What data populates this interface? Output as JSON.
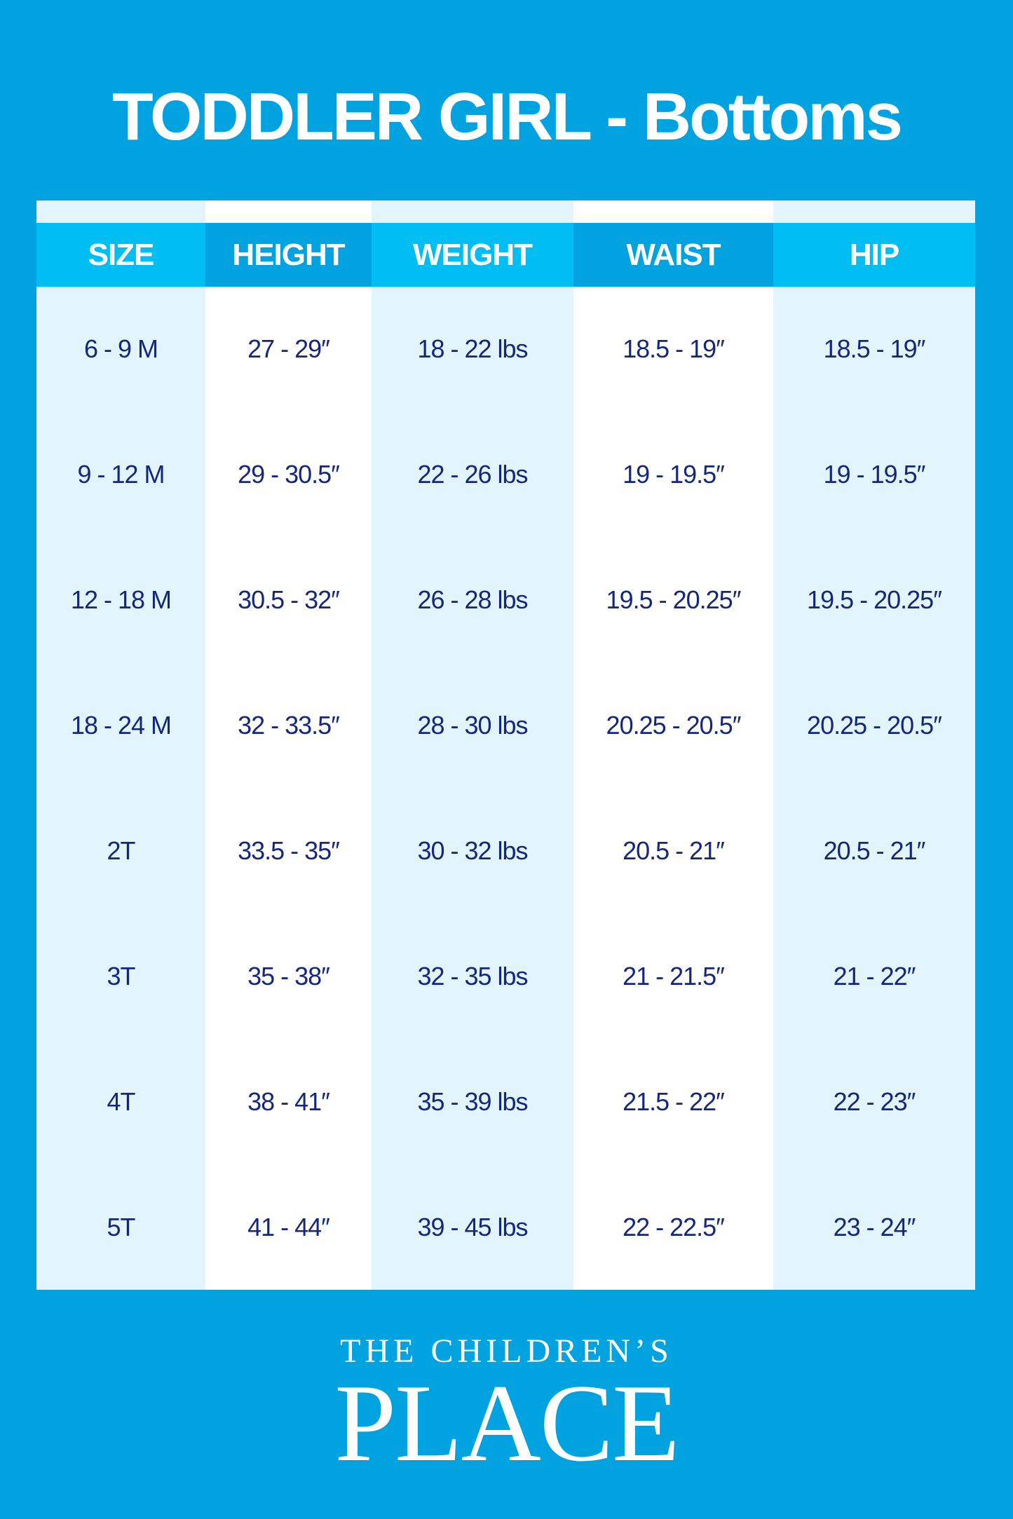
{
  "title": "TODDLER GIRL - Bottoms",
  "colors": {
    "background": "#00a3e0",
    "header_light": "#00bdf2",
    "header_dark": "#00a3e0",
    "column_light": "#e3f5fc",
    "text": "#15277a"
  },
  "table": {
    "columns": [
      "SIZE",
      "HEIGHT",
      "WEIGHT",
      "WAIST",
      "HIP"
    ],
    "rows": [
      [
        "6 - 9 M",
        "27 - 29″",
        "18 - 22 lbs",
        "18.5 - 19″",
        "18.5 - 19″"
      ],
      [
        "9 - 12 M",
        "29 - 30.5″",
        "22 - 26 lbs",
        "19 - 19.5″",
        "19 - 19.5″"
      ],
      [
        "12  - 18 M",
        "30.5 - 32″",
        "26 - 28 lbs",
        "19.5 - 20.25″",
        "19.5 - 20.25″"
      ],
      [
        "18 - 24 M",
        "32 - 33.5″",
        "28 - 30 lbs",
        "20.25 - 20.5″",
        "20.25 - 20.5″"
      ],
      [
        "2T",
        "33.5 - 35″",
        "30 - 32 lbs",
        "20.5 - 21″",
        "20.5 - 21″"
      ],
      [
        "3T",
        "35 - 38″",
        "32 - 35 lbs",
        "21 - 21.5″",
        "21 - 22″"
      ],
      [
        "4T",
        "38 - 41″",
        "35 - 39 lbs",
        "21.5 - 22″",
        "22 - 23″"
      ],
      [
        "5T",
        "41 - 44″",
        "39 - 45 lbs",
        "22 - 22.5″",
        "23 - 24″"
      ]
    ]
  },
  "logo": {
    "line1": "THE CHILDREN’S",
    "line2": "PLACE"
  }
}
